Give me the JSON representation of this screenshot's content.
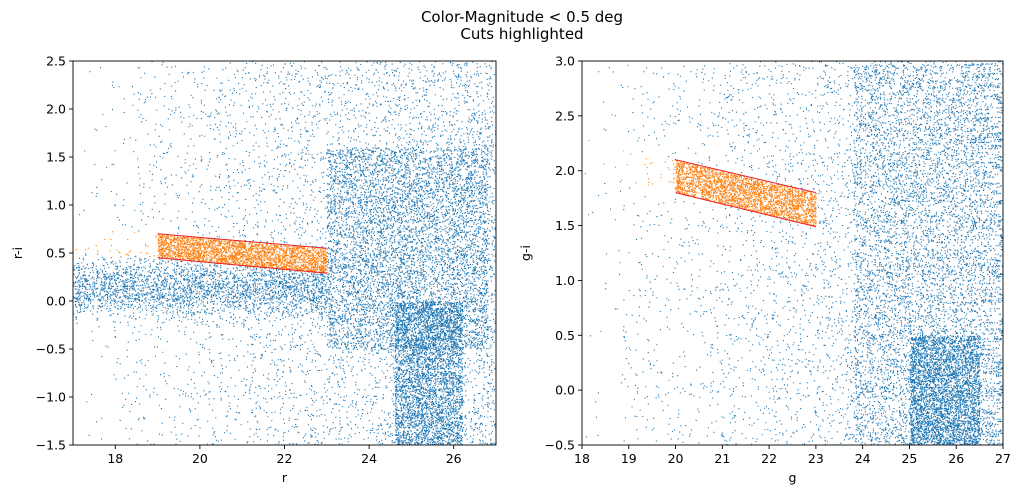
{
  "figure": {
    "title_line1": "Color-Magnitude < 0.5 deg",
    "title_line2": "Cuts highlighted"
  },
  "colors": {
    "all_stars": "#1f77b4",
    "selected_stars": "#ff7f0e",
    "cut_lines": "#e8202a"
  },
  "chart_data": [
    {
      "type": "scatter",
      "xlabel": "r",
      "ylabel": "r-i",
      "xlim": [
        17,
        27
      ],
      "ylim": [
        -1.5,
        2.5
      ],
      "xticks": [
        18,
        20,
        22,
        24,
        26
      ],
      "yticks": [
        -1.5,
        -1.0,
        -0.5,
        0.0,
        0.5,
        1.0,
        1.5,
        2.0,
        2.5
      ],
      "xtick_labels": [
        "18",
        "20",
        "22",
        "24",
        "26"
      ],
      "ytick_labels": [
        "−1.5",
        "−1.0",
        "−0.5",
        "0.0",
        "0.5",
        "1.0",
        "1.5",
        "2.0",
        "2.5"
      ],
      "grid": false,
      "series": [],
      "density_regions": [
        {
          "x": [
            17,
            27
          ],
          "y": [
            -1.5,
            2.5
          ],
          "n": 5500,
          "xmode": "ramp",
          "ymode": "uniform"
        },
        {
          "x": [
            17,
            23
          ],
          "y": [
            -0.3,
            0.6
          ],
          "n": 2800,
          "xmode": "uniform",
          "ymode": "band"
        },
        {
          "x": [
            23,
            26.8
          ],
          "y": [
            -0.5,
            1.6
          ],
          "n": 9000,
          "xmode": "uniform",
          "ymode": "uniform"
        },
        {
          "x": [
            24.6,
            26.2
          ],
          "y": [
            -1.5,
            0.0
          ],
          "n": 3500,
          "xmode": "uniform",
          "ymode": "uniform"
        }
      ],
      "cut": {
        "upper": [
          [
            19.0,
            0.7
          ],
          [
            23.0,
            0.55
          ]
        ],
        "lower": [
          [
            19.0,
            0.45
          ],
          [
            23.0,
            0.29
          ]
        ],
        "selected_range_x": [
          17,
          23
        ]
      }
    },
    {
      "type": "scatter",
      "xlabel": "g",
      "ylabel": "g-i",
      "xlim": [
        18,
        27
      ],
      "ylim": [
        -0.5,
        3.0
      ],
      "xticks": [
        18,
        19,
        20,
        21,
        22,
        23,
        24,
        25,
        26,
        27
      ],
      "yticks": [
        -0.5,
        0.0,
        0.5,
        1.0,
        1.5,
        2.0,
        2.5,
        3.0
      ],
      "xtick_labels": [
        "18",
        "19",
        "20",
        "21",
        "22",
        "23",
        "24",
        "25",
        "26",
        "27"
      ],
      "ytick_labels": [
        "−0.5",
        "0.0",
        "0.5",
        "1.0",
        "1.5",
        "2.0",
        "2.5",
        "3.0"
      ],
      "grid": false,
      "series": [],
      "density_regions": [
        {
          "x": [
            18,
            27
          ],
          "y": [
            -0.5,
            3.0
          ],
          "n": 5000,
          "xmode": "ramp",
          "ymode": "uniform"
        },
        {
          "x": [
            23.8,
            27
          ],
          "y": [
            -0.5,
            3.0
          ],
          "n": 12000,
          "xmode": "uniform",
          "ymode": "uniform"
        },
        {
          "x": [
            25,
            26.5
          ],
          "y": [
            -0.5,
            0.5
          ],
          "n": 3000,
          "xmode": "uniform",
          "ymode": "uniform"
        }
      ],
      "cut": {
        "upper": [
          [
            20.0,
            2.1
          ],
          [
            23.0,
            1.8
          ]
        ],
        "lower": [
          [
            20.0,
            1.8
          ],
          [
            23.0,
            1.49
          ]
        ],
        "selected_range_x": [
          18,
          23
        ]
      }
    }
  ]
}
